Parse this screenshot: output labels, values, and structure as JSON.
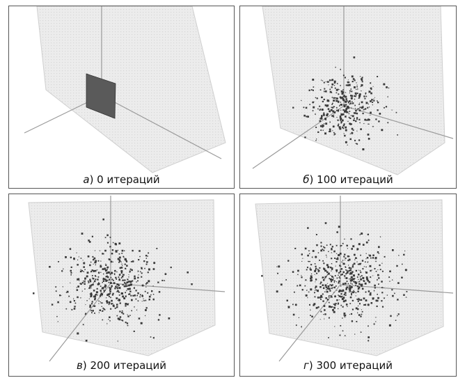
{
  "panels": [
    {
      "letter": "а",
      "text": ") 0 итераций",
      "iterations": 0
    },
    {
      "letter": "б",
      "text": ") 100 итераций",
      "iterations": 100
    },
    {
      "letter": "в",
      "text": ") 200 итераций",
      "iterations": 200
    },
    {
      "letter": "г",
      "text": ") 300 итераций",
      "iterations": 300
    }
  ],
  "colors": {
    "plane": "#ececec",
    "plane_grid": "#d6d6d6",
    "axis": "#9a9a9a",
    "points": "#3a3a3a",
    "square": "#5a5a5a"
  }
}
